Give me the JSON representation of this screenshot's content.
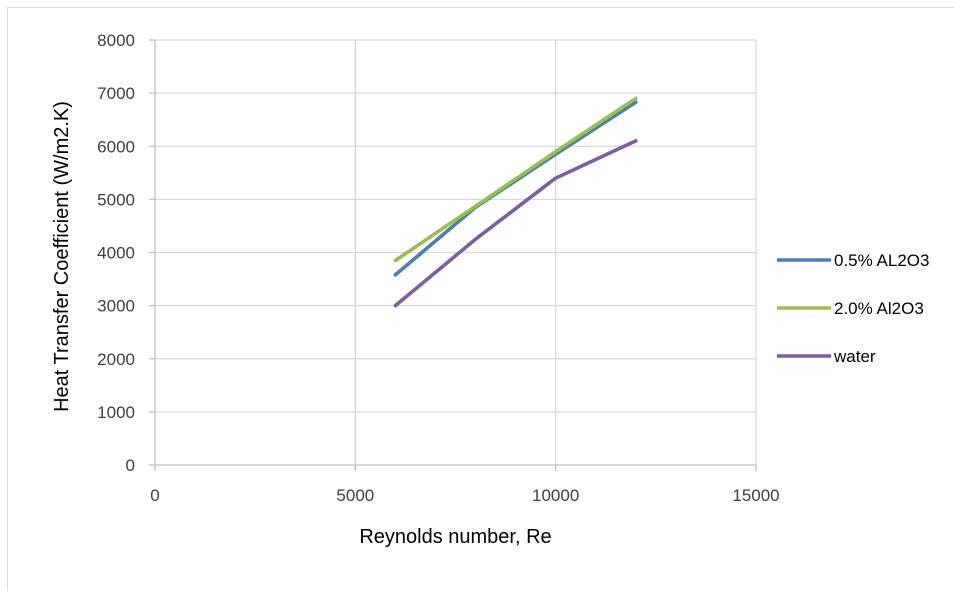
{
  "chart_data": {
    "type": "line",
    "xlabel": "Reynolds number, Re",
    "ylabel": "Heat Transfer Coefficient (W/m2.K)",
    "xlim": [
      0,
      15000
    ],
    "ylim": [
      0,
      8000
    ],
    "xticks": [
      0,
      5000,
      10000,
      15000
    ],
    "yticks": [
      0,
      1000,
      2000,
      3000,
      4000,
      5000,
      6000,
      7000,
      8000
    ],
    "grid": true,
    "legend_position": "right",
    "series": [
      {
        "name": "0.5% AL2O3",
        "color": "#4a7ebb",
        "x": [
          6000,
          8000,
          10000,
          12000
        ],
        "y": [
          3580,
          4850,
          5850,
          6830
        ]
      },
      {
        "name": "2.0% Al2O3",
        "color": "#98c14a",
        "x": [
          6000,
          8000,
          10000,
          12000
        ],
        "y": [
          3850,
          4870,
          5900,
          6900
        ]
      },
      {
        "name": "water",
        "color": "#7d5ea3",
        "x": [
          6000,
          8000,
          10000,
          12000
        ],
        "y": [
          3000,
          4250,
          5400,
          6100
        ]
      }
    ]
  }
}
